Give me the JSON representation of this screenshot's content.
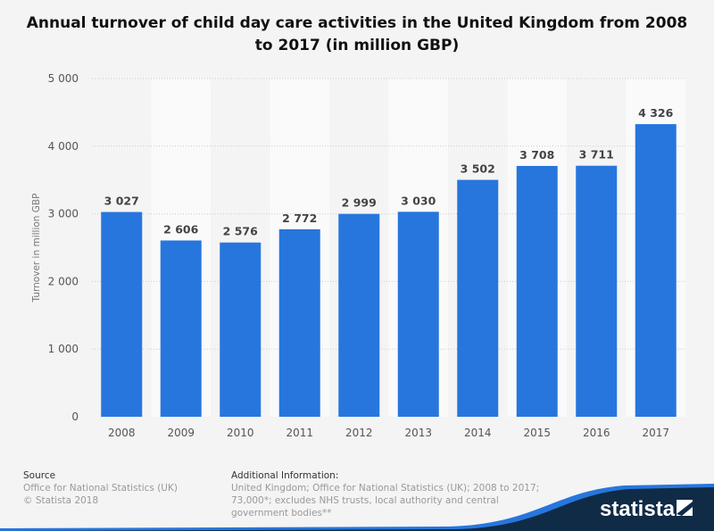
{
  "chart_data": {
    "type": "bar",
    "title": "Annual turnover of child day care activities in the United Kingdom from 2008 to 2017 (in million GBP)",
    "xlabel": "",
    "ylabel": "Turnover in million GBP",
    "categories": [
      "2008",
      "2009",
      "2010",
      "2011",
      "2012",
      "2013",
      "2014",
      "2015",
      "2016",
      "2017"
    ],
    "values": [
      3027,
      2606,
      2576,
      2772,
      2999,
      3030,
      3502,
      3708,
      3711,
      4326
    ],
    "data_labels": [
      "3 027",
      "2 606",
      "2 576",
      "2 772",
      "2 999",
      "3 030",
      "3 502",
      "3 708",
      "3 711",
      "4 326"
    ],
    "ylim": [
      0,
      5000
    ],
    "yticks": [
      0,
      1000,
      2000,
      3000,
      4000,
      5000
    ],
    "ytick_labels": [
      "0",
      "1 000",
      "2 000",
      "3 000",
      "4 000",
      "5 000"
    ],
    "grid": true,
    "bar_color": "#2776dd"
  },
  "footer": {
    "source_heading": "Source",
    "source_text": "Office for National Statistics (UK)",
    "copyright": "© Statista 2018",
    "info_heading": "Additional Information:",
    "info_lines": [
      "United Kingdom; Office for National Statistics (UK); 2008 to 2017;",
      "73,000*; excludes NHS trusts, local authority and central",
      "government bodies**"
    ],
    "logo": "statista"
  }
}
